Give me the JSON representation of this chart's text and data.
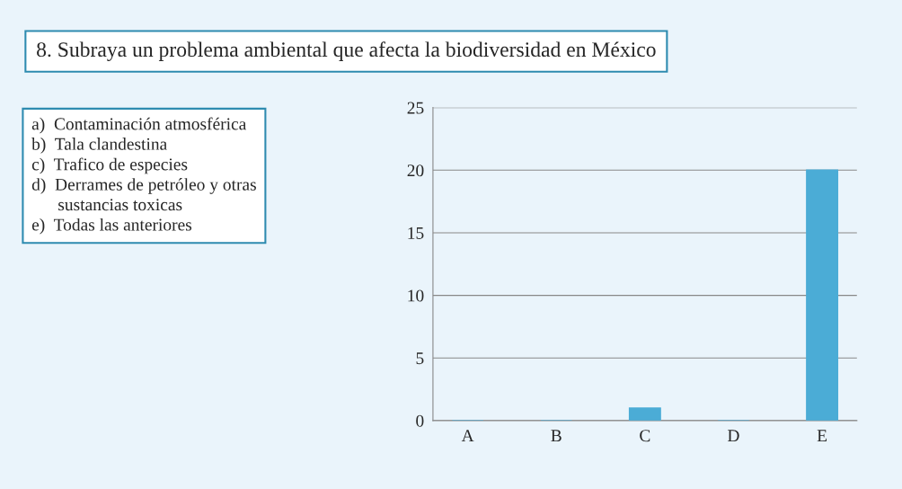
{
  "chart_data": {
    "type": "bar",
    "title": "8. Subraya un problema ambiental que afecta la biodiversidad en México",
    "categories": [
      "A",
      "B",
      "C",
      "D",
      "E"
    ],
    "values": [
      0,
      0,
      1,
      0,
      20
    ],
    "color": "#4bacd6",
    "ylim": [
      0,
      25
    ],
    "yticks": [
      0,
      5,
      10,
      15,
      20,
      25
    ],
    "grid": "y",
    "annotations": [
      "a)  Contaminación atmosférica\nb)  Tala clandestina\nc)  Trafico de especies\nd)  Derrames de petróleo y otras\n      sustancias toxicas\ne)  Todas las anteriores"
    ]
  }
}
